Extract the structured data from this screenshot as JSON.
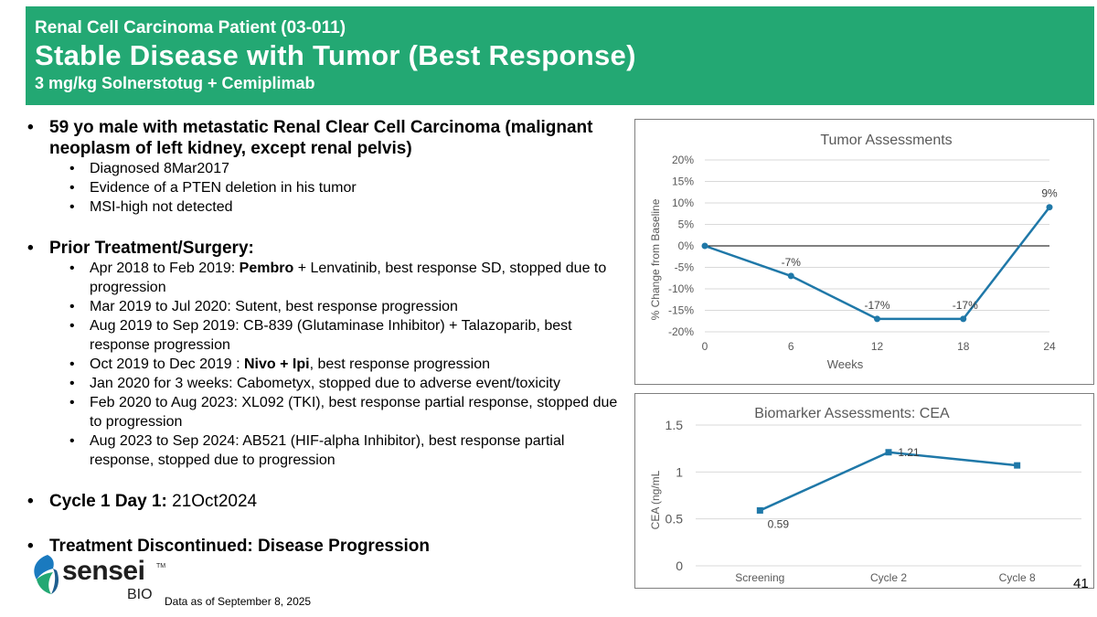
{
  "header": {
    "subtitle_top": "Renal Cell Carcinoma Patient (03-011)",
    "title": "Stable Disease with Tumor (Best Response)",
    "subtitle_bottom": "3 mg/kg Solnerstotug + Cemiplimab"
  },
  "content": {
    "patient": {
      "line": "59 yo male with metastatic Renal Clear Cell Carcinoma (malignant neoplasm of left kidney, except renal pelvis)",
      "details": [
        "Diagnosed 8Mar2017",
        "Evidence of a PTEN deletion in his tumor",
        "MSI-high not detected"
      ]
    },
    "prior": {
      "heading": "Prior Treatment/Surgery:",
      "items": [
        {
          "pre": "Apr 2018 to Feb 2019: ",
          "bold": "Pembro",
          "post": " + Lenvatinib, best response SD, stopped due to progression"
        },
        {
          "pre": "Mar 2019 to Jul 2020: Sutent, best response progression",
          "bold": "",
          "post": ""
        },
        {
          "pre": "Aug 2019 to Sep 2019: CB-839 (Glutaminase Inhibitor) + Talazoparib, best response progression",
          "bold": "",
          "post": ""
        },
        {
          "pre": "Oct 2019 to Dec 2019 : ",
          "bold": "Nivo + Ipi",
          "post": ", best response progression"
        },
        {
          "pre": "Jan 2020 for 3 weeks: Cabometyx, stopped due to adverse event/toxicity",
          "bold": "",
          "post": ""
        },
        {
          "pre": "Feb 2020 to Aug 2023: XL092 (TKI), best response partial response, stopped due to progression",
          "bold": "",
          "post": ""
        },
        {
          "pre": "Aug 2023 to Sep 2024: AB521 (HIF-alpha Inhibitor), best response partial response, stopped due to progression",
          "bold": "",
          "post": ""
        }
      ]
    },
    "cycle": {
      "label": "Cycle 1 Day 1:",
      "value": " 21Oct2024"
    },
    "discontinued": "Treatment Discontinued: Disease Progression"
  },
  "logo": {
    "word": "sensei",
    "tm": "TM",
    "bio": "BIO"
  },
  "footnote": "Data as of September 8, 2025",
  "page_number": "41",
  "colors": {
    "header_bg": "#23a873",
    "series": "#1f78a8"
  },
  "chart_data": [
    {
      "type": "line",
      "title": "Tumor Assessments",
      "xlabel": "Weeks",
      "ylabel": "% Change from Baseline",
      "x": [
        0,
        6,
        12,
        18,
        24
      ],
      "values": [
        0,
        -7,
        -17,
        -17,
        9
      ],
      "data_labels": [
        "",
        "-7%",
        "-17%",
        "-17%",
        "9%"
      ],
      "xticks": [
        "0",
        "6",
        "12",
        "18",
        "24"
      ],
      "yticks": [
        -20,
        -15,
        -10,
        -5,
        0,
        5,
        10,
        15,
        20
      ],
      "ytick_labels": [
        "-20%",
        "-15%",
        "-10%",
        "-5%",
        "0%",
        "5%",
        "10%",
        "15%",
        "20%"
      ],
      "xlim": [
        0,
        24
      ],
      "ylim": [
        -20,
        20
      ],
      "grid": true,
      "marker": "circle"
    },
    {
      "type": "line",
      "title": "Biomarker Assessments: CEA",
      "xlabel": "",
      "ylabel": "CEA (ng/mL",
      "categories": [
        "Screening",
        "Cycle 2",
        "Cycle 8"
      ],
      "values": [
        0.59,
        1.21,
        1.07
      ],
      "data_labels": [
        "0.59",
        "1.21",
        ""
      ],
      "yticks": [
        0,
        0.5,
        1,
        1.5
      ],
      "ytick_labels": [
        "0",
        "0.5",
        "1",
        "1.5"
      ],
      "ylim": [
        0,
        1.5
      ],
      "grid": true,
      "marker": "square"
    }
  ]
}
